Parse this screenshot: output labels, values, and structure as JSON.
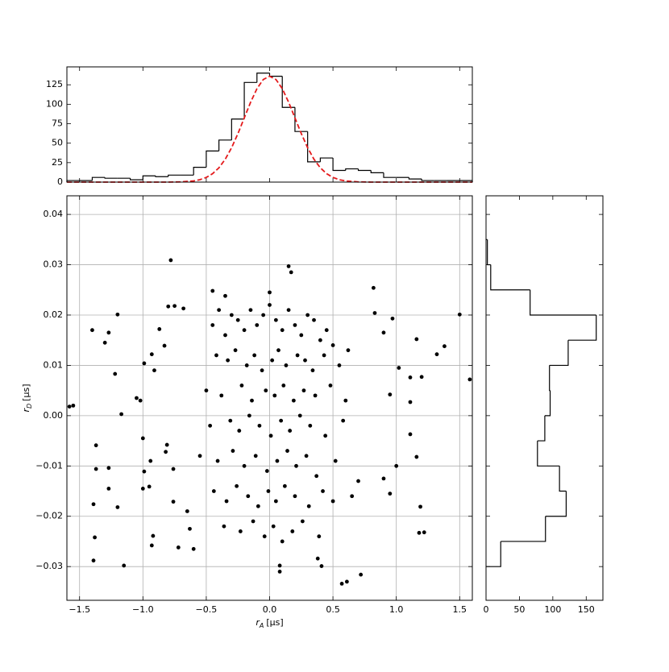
{
  "chart_data": [
    {
      "type": "histogram",
      "bins": [
        -1.6,
        -1.5,
        -1.4,
        -1.3,
        -1.2,
        -1.1,
        -1.0,
        -0.9,
        -0.8,
        -0.7,
        -0.6,
        -0.5,
        -0.4,
        -0.3,
        -0.2,
        -0.1,
        0.0,
        0.1,
        0.2,
        0.3,
        0.4,
        0.5,
        0.6,
        0.7,
        0.8,
        0.9,
        1.0,
        1.1,
        1.2,
        1.3,
        1.4,
        1.5,
        1.6
      ],
      "counts": [
        2,
        2,
        6,
        5,
        5,
        3,
        8,
        7,
        9,
        9,
        19,
        40,
        54,
        81,
        128,
        140,
        136,
        96,
        65,
        26,
        31,
        15,
        17,
        15,
        12,
        6,
        6,
        4,
        2,
        2,
        2,
        2
      ],
      "color": "#000000",
      "fit": {
        "x": [
          -1.6,
          -1.0,
          -0.8,
          -0.7,
          -0.6,
          -0.55,
          -0.5,
          -0.45,
          -0.4,
          -0.35,
          -0.3,
          -0.25,
          -0.2,
          -0.15,
          -0.1,
          -0.05,
          0.0,
          0.05,
          0.1,
          0.15,
          0.2,
          0.25,
          0.3,
          0.35,
          0.4,
          0.45,
          0.5,
          0.55,
          0.6,
          0.7,
          0.8,
          1.0,
          1.6
        ],
        "values": [
          0,
          0,
          0,
          0.3,
          1.5,
          3.1,
          6.0,
          10.8,
          18.4,
          29.4,
          44.2,
          62.3,
          82.5,
          102.6,
          120,
          131.8,
          136,
          131.8,
          120,
          102.6,
          82.5,
          62.3,
          44.2,
          29.4,
          18.4,
          10.8,
          6.0,
          3.1,
          1.5,
          0.3,
          0,
          0,
          0
        ],
        "color": "#e41a1c"
      },
      "xlim": [
        -1.6,
        1.6
      ],
      "xticks": [
        -1.5,
        -1,
        -0.5,
        0,
        0.5,
        1,
        1.5
      ],
      "ylim": [
        0,
        148
      ],
      "yticks": [
        0,
        25,
        50,
        75,
        100,
        125
      ]
    },
    {
      "type": "scatter",
      "x_label": {
        "symbol": "r",
        "subscript": "A",
        "unit": "[μs]"
      },
      "y_label": {
        "symbol": "r",
        "subscript": "D",
        "unit": "[μs]"
      },
      "color": "#000000",
      "grid": true,
      "x": [
        -1.58,
        -1.55,
        -1.4,
        -1.3,
        -1.27,
        -1.2,
        -1.22,
        -1.17,
        -1.37,
        -1.37,
        -1.27,
        -1.27,
        -1.39,
        -1.2,
        -1.38,
        -1.39,
        -1.15,
        -1.05,
        -1.02,
        -0.99,
        -0.93,
        -0.87,
        -0.78,
        -0.8,
        -0.75,
        -0.68,
        -0.83,
        -0.91,
        -1.0,
        -0.94,
        -0.99,
        -1.0,
        -0.95,
        -0.81,
        -0.82,
        -0.76,
        -0.76,
        -0.93,
        -0.92,
        -0.72,
        -0.6,
        -0.63,
        1.5,
        1.58,
        1.38,
        1.32,
        1.2,
        1.16,
        1.02,
        0.97,
        0.9,
        0.83,
        0.82,
        1.11,
        0.95,
        1.11,
        1.11,
        1.16,
        1.0,
        0.9,
        0.95,
        1.19,
        1.18,
        1.22,
        0.72,
        0.57,
        0.61,
        0.08,
        0.08,
        0.41,
        0.38,
        0.15,
        0.17,
        0.0,
        -0.35,
        -0.45,
        -0.45,
        -0.4,
        -0.35,
        -0.3,
        -0.25,
        -0.2,
        -0.15,
        -0.1,
        -0.05,
        0.0,
        0.05,
        0.1,
        0.15,
        0.2,
        0.25,
        0.3,
        0.35,
        0.4,
        0.45,
        0.5,
        -0.42,
        -0.33,
        -0.27,
        -0.18,
        -0.12,
        -0.06,
        0.02,
        0.07,
        0.13,
        0.22,
        0.28,
        0.34,
        0.43,
        0.55,
        0.62,
        -0.5,
        -0.38,
        -0.22,
        -0.14,
        -0.03,
        0.04,
        0.11,
        0.19,
        0.27,
        0.36,
        0.48,
        0.6,
        -0.47,
        -0.31,
        -0.24,
        -0.16,
        -0.08,
        0.01,
        0.09,
        0.16,
        0.24,
        0.32,
        0.44,
        0.58,
        -0.55,
        -0.41,
        -0.29,
        -0.2,
        -0.11,
        -0.02,
        0.06,
        0.14,
        0.21,
        0.29,
        0.37,
        0.52,
        -0.44,
        -0.34,
        -0.26,
        -0.17,
        -0.09,
        -0.01,
        0.05,
        0.12,
        0.2,
        0.31,
        0.42,
        0.5,
        -0.36,
        -0.23,
        -0.13,
        -0.04,
        0.03,
        0.1,
        0.18,
        0.26,
        0.39,
        0.65,
        -0.65,
        0.7
      ],
      "y": [
        0.0018,
        0.002,
        0.017,
        0.0145,
        0.0165,
        0.0201,
        0.0083,
        0.0003,
        -0.0059,
        -0.0106,
        -0.0104,
        -0.0145,
        -0.0176,
        -0.0182,
        -0.0242,
        -0.0288,
        -0.0298,
        0.0035,
        0.003,
        0.0104,
        0.0122,
        0.0172,
        0.0309,
        0.0217,
        0.0218,
        0.0213,
        0.0139,
        0.009,
        -0.0045,
        -0.009,
        -0.0111,
        -0.0145,
        -0.0141,
        -0.0058,
        -0.0072,
        -0.0106,
        -0.0171,
        -0.0258,
        -0.0239,
        -0.0262,
        -0.0265,
        -0.0225,
        0.0201,
        0.0072,
        0.0138,
        0.0122,
        0.0077,
        0.0152,
        0.0095,
        0.0193,
        0.0165,
        0.0204,
        0.0254,
        0.0076,
        0.0042,
        0.0027,
        -0.0037,
        -0.0082,
        -0.01,
        -0.0125,
        -0.0155,
        -0.0181,
        -0.0233,
        -0.0232,
        -0.0316,
        -0.0334,
        -0.033,
        -0.0298,
        -0.031,
        -0.0299,
        -0.0284,
        0.0297,
        0.0285,
        0.0245,
        0.0238,
        0.0248,
        0.018,
        0.021,
        0.016,
        0.02,
        0.019,
        0.017,
        0.021,
        0.018,
        0.02,
        0.022,
        0.019,
        0.017,
        0.021,
        0.018,
        0.016,
        0.02,
        0.019,
        0.015,
        0.017,
        0.014,
        0.012,
        0.011,
        0.013,
        0.01,
        0.012,
        0.009,
        0.011,
        0.013,
        0.01,
        0.012,
        0.011,
        0.009,
        0.012,
        0.01,
        0.013,
        0.005,
        0.004,
        0.006,
        0.003,
        0.005,
        0.004,
        0.006,
        0.003,
        0.005,
        0.004,
        0.006,
        0.003,
        -0.002,
        -0.001,
        -0.003,
        0.0,
        -0.002,
        -0.004,
        -0.001,
        -0.003,
        0.0,
        -0.002,
        -0.004,
        -0.001,
        -0.008,
        -0.009,
        -0.007,
        -0.01,
        -0.008,
        -0.011,
        -0.009,
        -0.007,
        -0.01,
        -0.008,
        -0.012,
        -0.009,
        -0.015,
        -0.017,
        -0.014,
        -0.016,
        -0.018,
        -0.015,
        -0.017,
        -0.014,
        -0.016,
        -0.018,
        -0.015,
        -0.017,
        -0.022,
        -0.023,
        -0.021,
        -0.024,
        -0.022,
        -0.025,
        -0.023,
        -0.021,
        -0.024,
        -0.016,
        -0.019,
        -0.013
      ],
      "xlim": [
        -1.6,
        1.6
      ],
      "xticks": [
        {
          "value": -1.5,
          "label": "−1.5"
        },
        {
          "value": -1,
          "label": "−1.0"
        },
        {
          "value": -0.5,
          "label": "−0.5"
        },
        {
          "value": 0,
          "label": "0.0"
        },
        {
          "value": 0.5,
          "label": "0.5"
        },
        {
          "value": 1,
          "label": "1.0"
        },
        {
          "value": 1.5,
          "label": "1.5"
        }
      ],
      "ylim": [
        -0.0367,
        0.0437
      ],
      "yticks": [
        {
          "value": -0.03,
          "label": "−0.03"
        },
        {
          "value": -0.02,
          "label": "−0.02"
        },
        {
          "value": -0.01,
          "label": "−0.01"
        },
        {
          "value": 0,
          "label": "0.00"
        },
        0.01,
        0.02,
        0.03,
        0.04
      ]
    },
    {
      "type": "histogram",
      "orientation": "horizontal",
      "bins": [
        -0.03,
        -0.025,
        -0.02,
        -0.015,
        -0.01,
        -0.005,
        0.0,
        0.005,
        0.01,
        0.015,
        0.02,
        0.025,
        0.03,
        0.035
      ],
      "counts": [
        22,
        89,
        120,
        110,
        77,
        88,
        96,
        95,
        123,
        165,
        66,
        7,
        2
      ],
      "color": "#000000",
      "xlim": [
        0,
        175
      ],
      "xticks": [
        0,
        50,
        100,
        150
      ],
      "ylim": [
        -0.0367,
        0.0437
      ],
      "yticks": [
        -0.03,
        -0.02,
        -0.01,
        0,
        0.01,
        0.02,
        0.03,
        0.04
      ]
    }
  ]
}
